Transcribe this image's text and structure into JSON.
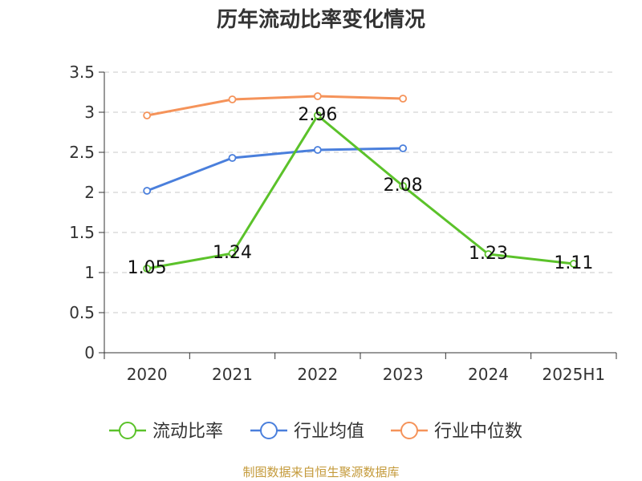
{
  "title": "历年流动比率变化情况",
  "source": "制图数据来自恒生聚源数据库",
  "chart_data": {
    "type": "line",
    "categories": [
      "2020",
      "2021",
      "2022",
      "2023",
      "2024",
      "2025H1"
    ],
    "ylim": [
      0,
      3.5
    ],
    "yticks": [
      "0",
      "0.5",
      "1",
      "1.5",
      "2",
      "2.5",
      "3",
      "3.5"
    ],
    "grid": true,
    "legend_position": "bottom",
    "series": [
      {
        "name": "流动比率",
        "color": "#5bc22a",
        "values": [
          1.05,
          1.24,
          2.96,
          2.08,
          1.23,
          1.11
        ],
        "labels": [
          "1.05",
          "1.24",
          "2.96",
          "2.08",
          "1.23",
          "1.11"
        ]
      },
      {
        "name": "行业均值",
        "color": "#4a7fdc",
        "values": [
          2.02,
          2.43,
          2.53,
          2.55,
          null,
          null
        ]
      },
      {
        "name": "行业中位数",
        "color": "#f5935a",
        "values": [
          2.96,
          3.16,
          3.2,
          3.17,
          null,
          null
        ]
      }
    ]
  }
}
